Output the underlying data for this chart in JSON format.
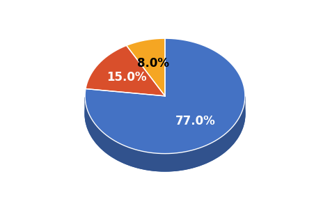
{
  "values": [
    77.0,
    15.0,
    8.0
  ],
  "labels": [
    "77.0%",
    "15.0%",
    "8.0%"
  ],
  "colors": [
    "#4472C4",
    "#D94F2B",
    "#F5A623"
  ],
  "side_color": "#2B5BA8",
  "background_color": "#FFFFFF",
  "label_colors": [
    "white",
    "white",
    "black"
  ],
  "label_fontsize": 12,
  "startangle": 90,
  "a": 1.0,
  "b": 0.72,
  "depth": 0.22,
  "label_r": 0.58
}
